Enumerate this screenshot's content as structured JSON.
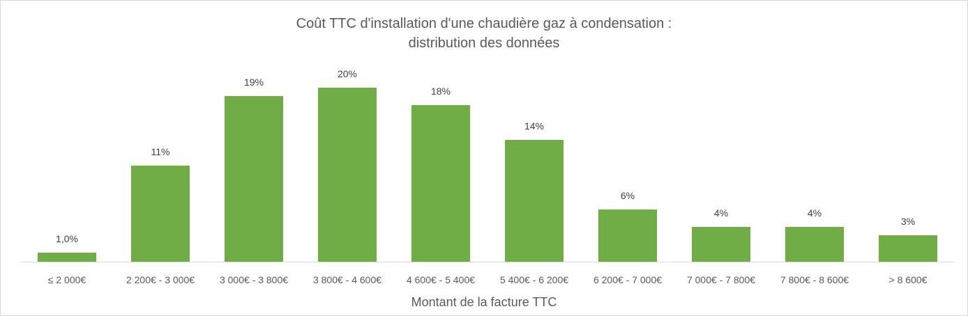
{
  "chart_data": {
    "type": "bar",
    "title": "Coût TTC d'installation d'une chaudière gaz à condensation : distribution des données",
    "title_lines": [
      "Coût TTC d'installation d'une chaudière gaz à condensation :",
      "distribution des données"
    ],
    "xlabel": "Montant de la facture TTC",
    "ylabel": "",
    "categories": [
      "≤ 2 000€",
      "2 200€ - 3 000€",
      "3 000€ - 3 800€",
      "3 800€ - 4 600€",
      "4 600€ - 5 400€",
      "5 400€ - 6 200€",
      "6 200€ - 7 000€",
      "7 000€ - 7 800€",
      "7 800€ - 8 600€",
      "> 8 600€"
    ],
    "values": [
      1.0,
      11,
      19,
      20,
      18,
      14,
      6,
      4,
      4,
      3
    ],
    "data_labels": [
      "1,0%",
      "11%",
      "19%",
      "20%",
      "18%",
      "14%",
      "6%",
      "4%",
      "4%",
      "3%"
    ],
    "unit": "%",
    "ylim": [
      0,
      20
    ],
    "grid": false,
    "legend": null,
    "color": "#70ad47"
  }
}
